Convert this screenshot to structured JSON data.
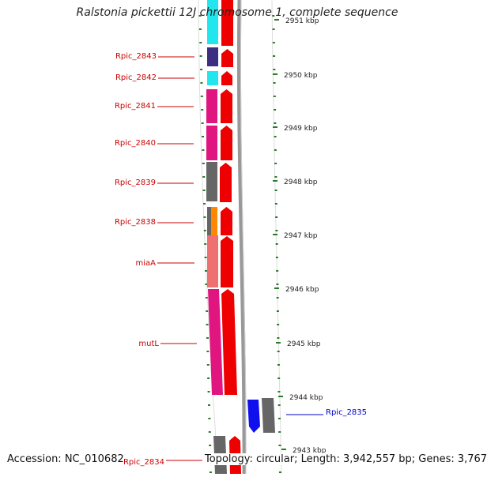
{
  "title": "Ralstonia pickettii 12J chromosome 1, complete sequence",
  "footer": {
    "accession": "Accession: NC_010682",
    "stats": "Topology: circular; Length: 3,942,557 bp; Genes: 3,767"
  },
  "colors": {
    "label_red": "#cc0000",
    "label_blue": "#0000cc",
    "tick_green": "#2a7a2a",
    "cyan": "#22e6ee",
    "navy": "#3c2f80",
    "magenta": "#e0157f",
    "gray": "#666666",
    "orange": "#ff8800",
    "salmon": "#ee7070",
    "arrow_red": "#ee0000",
    "blue": "#1010ee"
  },
  "scale_labels": [
    "2951 kbp",
    "2950 kbp",
    "2949 kbp",
    "2948 kbp",
    "2947 kbp",
    "2946 kbp",
    "2945 kbp",
    "2944 kbp",
    "2943 kbp"
  ],
  "gene_labels": [
    "Rpic_2843",
    "Rpic_2842",
    "Rpic_2841",
    "Rpic_2840",
    "Rpic_2839",
    "Rpic_2838",
    "miaA",
    "mutL",
    "Rpic_2835",
    "Rpic_2834"
  ]
}
